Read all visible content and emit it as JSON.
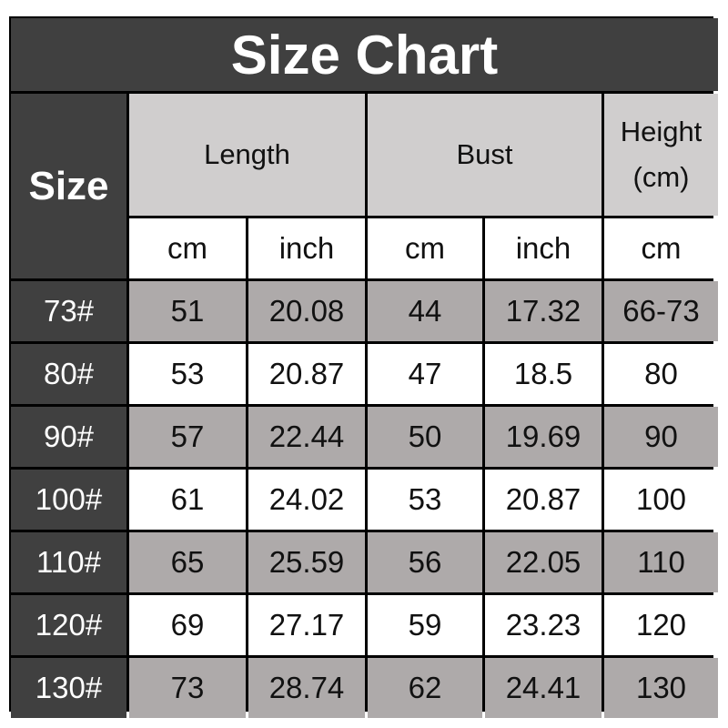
{
  "chart_data": {
    "type": "table",
    "title": "Size Chart",
    "size_header": "Size",
    "groups": [
      {
        "label": "Length",
        "units": [
          "cm",
          "inch"
        ]
      },
      {
        "label": "Bust",
        "units": [
          "cm",
          "inch"
        ]
      },
      {
        "label": "Height (cm)",
        "label_lines": [
          "Height",
          "(cm)"
        ],
        "units": [
          "cm"
        ]
      }
    ],
    "rows": [
      [
        "73#",
        "51",
        "20.08",
        "44",
        "17.32",
        "66-73"
      ],
      [
        "80#",
        "53",
        "20.87",
        "47",
        "18.5",
        "80"
      ],
      [
        "90#",
        "57",
        "22.44",
        "50",
        "19.69",
        "90"
      ],
      [
        "100#",
        "61",
        "24.02",
        "53",
        "20.87",
        "100"
      ],
      [
        "110#",
        "65",
        "25.59",
        "56",
        "22.05",
        "110"
      ],
      [
        "120#",
        "69",
        "27.17",
        "59",
        "23.23",
        "120"
      ],
      [
        "130#",
        "73",
        "28.74",
        "62",
        "24.41",
        "130"
      ]
    ],
    "colors": {
      "dark": "#404040",
      "header": "#d0cece",
      "stripe": "#aeaaaa",
      "border": "#000000"
    }
  }
}
